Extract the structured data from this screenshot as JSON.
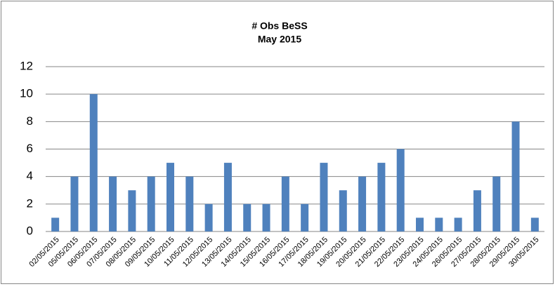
{
  "chart_data": {
    "type": "bar",
    "title": "# Obs BeSS",
    "subtitle": "May 2015",
    "categories": [
      "02/05/2015",
      "05/05/2015",
      "06/05/2015",
      "07/05/2015",
      "08/05/2015",
      "09/05/2015",
      "10/05/2015",
      "11/05/2015",
      "12/05/2015",
      "13/05/2015",
      "14/05/2015",
      "15/05/2015",
      "16/05/2015",
      "17/05/2015",
      "18/05/2015",
      "19/05/2015",
      "20/05/2015",
      "21/05/2015",
      "22/05/2015",
      "23/05/2015",
      "24/05/2015",
      "26/05/2015",
      "27/05/2015",
      "28/05/2015",
      "29/05/2015",
      "30/05/2015"
    ],
    "values": [
      1,
      4,
      10,
      4,
      3,
      4,
      5,
      4,
      2,
      5,
      2,
      2,
      4,
      2,
      5,
      3,
      4,
      5,
      6,
      1,
      1,
      1,
      3,
      4,
      8,
      1
    ],
    "color": "#4f81bd",
    "ylim": [
      0,
      12
    ],
    "yticks": [
      0,
      2,
      4,
      6,
      8,
      10,
      12
    ],
    "grid": true
  }
}
